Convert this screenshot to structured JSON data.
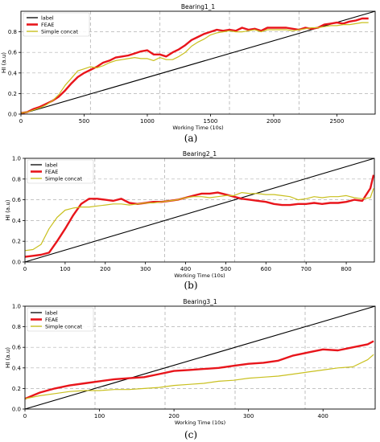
{
  "figure": {
    "subcaptions": [
      "(a)",
      "(b)",
      "(c)"
    ]
  },
  "colors": {
    "label": "#000000",
    "feae": "#e8151b",
    "simple": "#c9c01f",
    "grid": "#b0b0b0"
  },
  "chart_data": [
    {
      "type": "line",
      "title": "Bearing1_1",
      "xlabel": "Working Time (10s)",
      "ylabel": "HI (a.u)",
      "xlim": [
        0,
        2803
      ],
      "ylim": [
        0,
        1.0
      ],
      "xticks": [
        0,
        500,
        1000,
        1500,
        2000,
        2500
      ],
      "yticks": [
        0.0,
        0.2,
        0.4,
        0.6,
        0.8
      ],
      "ytick_labels": [
        "0.0",
        "0.2",
        "0.4",
        "0.6",
        "0.8"
      ],
      "vlines": [
        550,
        1100,
        1650,
        2200
      ],
      "grid": true,
      "legend": "top-left",
      "series": [
        {
          "name": "label",
          "x": [
            0,
            2803
          ],
          "y": [
            0,
            1.0
          ]
        },
        {
          "name": "FEAE",
          "x": [
            0,
            50,
            100,
            150,
            200,
            250,
            300,
            350,
            400,
            450,
            500,
            550,
            600,
            650,
            700,
            750,
            800,
            850,
            900,
            950,
            1000,
            1050,
            1100,
            1150,
            1200,
            1250,
            1300,
            1350,
            1400,
            1450,
            1500,
            1550,
            1600,
            1650,
            1700,
            1750,
            1800,
            1850,
            1900,
            1950,
            2000,
            2050,
            2100,
            2150,
            2200,
            2250,
            2300,
            2350,
            2400,
            2450,
            2500,
            2550,
            2600,
            2650,
            2700,
            2750
          ],
          "y": [
            0.01,
            0.02,
            0.05,
            0.07,
            0.1,
            0.13,
            0.17,
            0.23,
            0.3,
            0.36,
            0.4,
            0.43,
            0.46,
            0.5,
            0.52,
            0.55,
            0.56,
            0.57,
            0.59,
            0.61,
            0.62,
            0.58,
            0.58,
            0.56,
            0.6,
            0.63,
            0.67,
            0.72,
            0.75,
            0.78,
            0.8,
            0.82,
            0.81,
            0.82,
            0.81,
            0.84,
            0.82,
            0.83,
            0.81,
            0.84,
            0.84,
            0.84,
            0.84,
            0.83,
            0.82,
            0.84,
            0.83,
            0.84,
            0.87,
            0.88,
            0.89,
            0.88,
            0.9,
            0.91,
            0.93,
            0.93
          ]
        },
        {
          "name": "Simple concat",
          "x": [
            0,
            50,
            100,
            150,
            200,
            250,
            300,
            350,
            400,
            450,
            500,
            550,
            600,
            650,
            700,
            750,
            800,
            850,
            900,
            950,
            1000,
            1050,
            1100,
            1150,
            1200,
            1250,
            1300,
            1350,
            1400,
            1450,
            1500,
            1550,
            1600,
            1650,
            1700,
            1750,
            1800,
            1850,
            1900,
            1950,
            2000,
            2050,
            2100,
            2150,
            2200,
            2250,
            2300,
            2350,
            2400,
            2450,
            2500,
            2550,
            2600,
            2650,
            2700,
            2750
          ],
          "y": [
            0.01,
            0.02,
            0.04,
            0.06,
            0.09,
            0.13,
            0.19,
            0.28,
            0.35,
            0.42,
            0.44,
            0.46,
            0.45,
            0.47,
            0.5,
            0.52,
            0.53,
            0.54,
            0.55,
            0.54,
            0.54,
            0.52,
            0.55,
            0.53,
            0.53,
            0.56,
            0.6,
            0.66,
            0.7,
            0.73,
            0.77,
            0.79,
            0.8,
            0.81,
            0.8,
            0.8,
            0.81,
            0.82,
            0.8,
            0.82,
            0.82,
            0.82,
            0.82,
            0.81,
            0.82,
            0.83,
            0.84,
            0.84,
            0.85,
            0.86,
            0.86,
            0.87,
            0.87,
            0.88,
            0.89,
            0.89
          ]
        }
      ]
    },
    {
      "type": "line",
      "title": "Bearing2_1",
      "xlabel": "Working Time (10s)",
      "ylabel": "HI (a.u)",
      "xlim": [
        0,
        870
      ],
      "ylim": [
        0,
        1.0
      ],
      "xticks": [
        0,
        100,
        200,
        300,
        400,
        500,
        600,
        700,
        800
      ],
      "yticks": [
        0.0,
        0.2,
        0.4,
        0.6,
        0.8,
        1.0
      ],
      "ytick_labels": [
        "0.0",
        "0.2",
        "0.4",
        "0.6",
        "0.8",
        "1.0"
      ],
      "vlines": [
        174,
        348,
        522,
        696
      ],
      "grid": true,
      "legend": "top-left",
      "series": [
        {
          "name": "label",
          "x": [
            0,
            870
          ],
          "y": [
            0,
            1.0
          ]
        },
        {
          "name": "FEAE",
          "x": [
            0,
            20,
            40,
            60,
            80,
            100,
            120,
            140,
            160,
            180,
            200,
            220,
            240,
            260,
            280,
            300,
            320,
            340,
            360,
            380,
            400,
            420,
            440,
            460,
            480,
            500,
            520,
            540,
            560,
            580,
            600,
            620,
            640,
            660,
            680,
            700,
            720,
            740,
            760,
            780,
            800,
            820,
            840,
            860,
            868
          ],
          "y": [
            0.05,
            0.06,
            0.07,
            0.09,
            0.2,
            0.32,
            0.45,
            0.56,
            0.61,
            0.61,
            0.6,
            0.59,
            0.61,
            0.57,
            0.56,
            0.57,
            0.58,
            0.58,
            0.59,
            0.6,
            0.62,
            0.64,
            0.66,
            0.66,
            0.67,
            0.65,
            0.63,
            0.61,
            0.6,
            0.59,
            0.58,
            0.56,
            0.55,
            0.55,
            0.56,
            0.56,
            0.57,
            0.56,
            0.57,
            0.57,
            0.58,
            0.6,
            0.59,
            0.71,
            0.84
          ]
        },
        {
          "name": "Simple concat",
          "x": [
            0,
            20,
            40,
            60,
            80,
            100,
            120,
            140,
            160,
            180,
            200,
            220,
            240,
            260,
            280,
            300,
            320,
            340,
            360,
            380,
            400,
            420,
            440,
            460,
            480,
            500,
            520,
            540,
            560,
            580,
            600,
            620,
            640,
            660,
            680,
            700,
            720,
            740,
            760,
            780,
            800,
            820,
            840,
            860,
            868
          ],
          "y": [
            0.11,
            0.12,
            0.17,
            0.32,
            0.43,
            0.5,
            0.52,
            0.53,
            0.53,
            0.54,
            0.55,
            0.56,
            0.56,
            0.55,
            0.56,
            0.57,
            0.57,
            0.58,
            0.59,
            0.6,
            0.62,
            0.63,
            0.63,
            0.62,
            0.63,
            0.64,
            0.64,
            0.67,
            0.66,
            0.66,
            0.65,
            0.65,
            0.64,
            0.63,
            0.6,
            0.61,
            0.63,
            0.62,
            0.63,
            0.63,
            0.64,
            0.62,
            0.61,
            0.62,
            0.71
          ]
        }
      ]
    },
    {
      "type": "line",
      "title": "Bearing3_1",
      "xlabel": "Working Time (10s)",
      "ylabel": "HI (a.u)",
      "xlim": [
        0,
        470
      ],
      "ylim": [
        0,
        1.0
      ],
      "xticks": [
        0,
        100,
        200,
        300,
        400
      ],
      "yticks": [
        0.0,
        0.2,
        0.4,
        0.6,
        0.8,
        1.0
      ],
      "ytick_labels": [
        "0.0",
        "0.2",
        "0.4",
        "0.6",
        "0.8",
        "1.0"
      ],
      "vlines": [
        94,
        188,
        282,
        376
      ],
      "grid": true,
      "legend": "top-left",
      "series": [
        {
          "name": "label",
          "x": [
            0,
            470
          ],
          "y": [
            0,
            1.0
          ]
        },
        {
          "name": "FEAE",
          "x": [
            0,
            20,
            40,
            60,
            80,
            100,
            120,
            140,
            160,
            180,
            200,
            220,
            240,
            260,
            280,
            300,
            320,
            340,
            360,
            380,
            400,
            420,
            440,
            460,
            468
          ],
          "y": [
            0.1,
            0.16,
            0.2,
            0.23,
            0.25,
            0.27,
            0.29,
            0.3,
            0.31,
            0.34,
            0.37,
            0.38,
            0.39,
            0.4,
            0.42,
            0.44,
            0.45,
            0.47,
            0.52,
            0.55,
            0.58,
            0.57,
            0.6,
            0.63,
            0.66
          ]
        },
        {
          "name": "Simple concat",
          "x": [
            0,
            20,
            40,
            60,
            80,
            100,
            120,
            140,
            160,
            180,
            200,
            220,
            240,
            260,
            280,
            300,
            320,
            340,
            360,
            380,
            400,
            420,
            440,
            460,
            468
          ],
          "y": [
            0.1,
            0.13,
            0.15,
            0.17,
            0.18,
            0.18,
            0.19,
            0.19,
            0.2,
            0.21,
            0.23,
            0.24,
            0.25,
            0.27,
            0.28,
            0.3,
            0.31,
            0.32,
            0.34,
            0.36,
            0.38,
            0.4,
            0.41,
            0.48,
            0.53
          ]
        }
      ]
    }
  ]
}
